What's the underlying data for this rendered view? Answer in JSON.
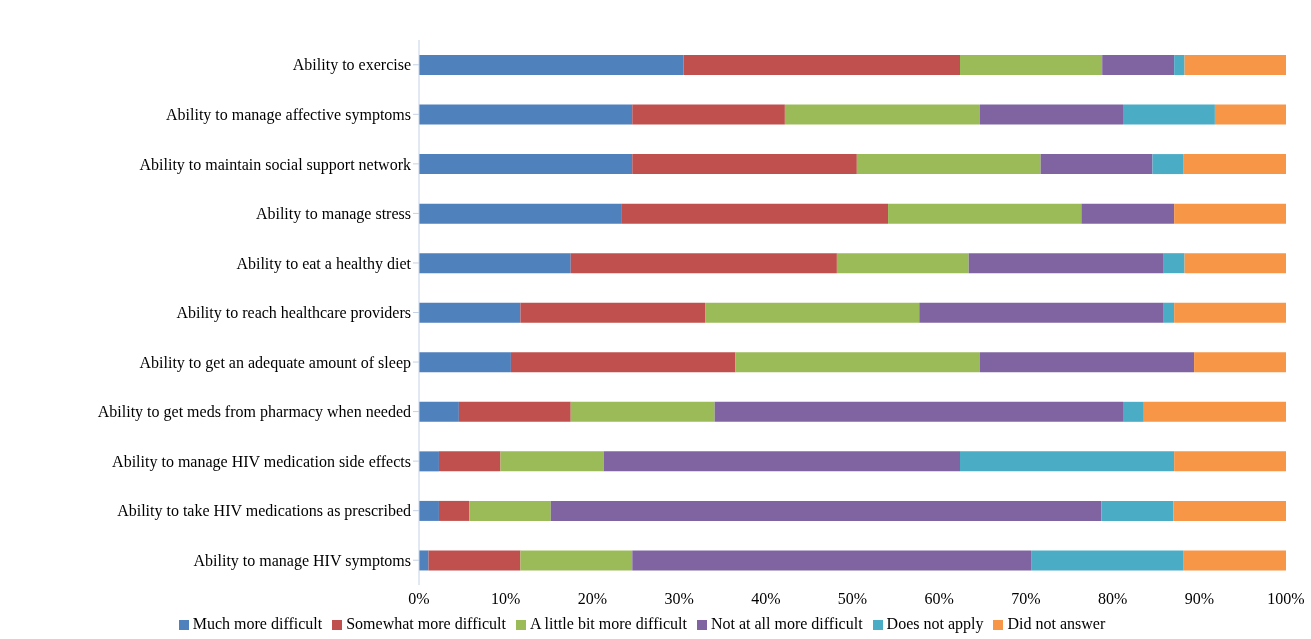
{
  "chart_data": {
    "type": "bar",
    "orientation": "horizontal",
    "stacked": true,
    "legend": "bottom",
    "grid": false,
    "categories": [
      "Ability to exercise",
      "Ability to manage affective symptoms",
      "Ability to maintain social support network",
      "Ability to manage stress",
      "Ability to eat a healthy diet",
      "Ability to reach healthcare providers",
      "Ability to get an adequate amount of sleep",
      "Ability to get meds from pharmacy when needed",
      "Ability to manage HIV medication side effects",
      "Ability to take HIV medications as prescribed",
      "Ability to manage HIV symptoms"
    ],
    "series": [
      {
        "name": "Much more difficult",
        "color": "#4f81bd",
        "values": [
          30.5,
          24.6,
          24.6,
          23.4,
          17.5,
          11.7,
          10.6,
          4.6,
          2.3,
          2.3,
          1.1
        ]
      },
      {
        "name": "Somewhat more difficult",
        "color": "#c0504d",
        "values": [
          31.9,
          17.6,
          25.9,
          30.7,
          30.7,
          21.3,
          25.9,
          12.9,
          7.1,
          3.5,
          10.6
        ]
      },
      {
        "name": "A little bit more difficult",
        "color": "#9bbb59",
        "values": [
          16.4,
          22.5,
          21.2,
          22.3,
          15.2,
          24.7,
          28.2,
          16.6,
          11.9,
          9.4,
          12.9
        ]
      },
      {
        "name": "Not at all more difficult",
        "color": "#8064a2",
        "values": [
          8.3,
          16.5,
          12.9,
          10.7,
          22.5,
          28.2,
          24.7,
          47.1,
          41.1,
          63.5,
          46.0
        ]
      },
      {
        "name": "Does not apply",
        "color": "#4bacc6",
        "values": [
          1.2,
          10.6,
          3.6,
          0,
          2.4,
          1.2,
          0,
          2.4,
          24.7,
          8.3,
          17.6
        ]
      },
      {
        "name": "Did not answer",
        "color": "#f79646",
        "values": [
          11.7,
          8.2,
          11.8,
          12.9,
          11.7,
          12.9,
          10.6,
          16.4,
          12.9,
          13.0,
          11.8
        ]
      }
    ],
    "xlim": [
      0,
      100
    ],
    "xticks": [
      {
        "value": 0,
        "label": "0%"
      },
      {
        "value": 10,
        "label": "10%"
      },
      {
        "value": 20,
        "label": "20%"
      },
      {
        "value": 30,
        "label": "30%"
      },
      {
        "value": 40,
        "label": "40%"
      },
      {
        "value": 50,
        "label": "50%"
      },
      {
        "value": 60,
        "label": "60%"
      },
      {
        "value": 70,
        "label": "70%"
      },
      {
        "value": 80,
        "label": "80%"
      },
      {
        "value": 90,
        "label": "90%"
      },
      {
        "value": 100,
        "label": "100%"
      }
    ]
  }
}
